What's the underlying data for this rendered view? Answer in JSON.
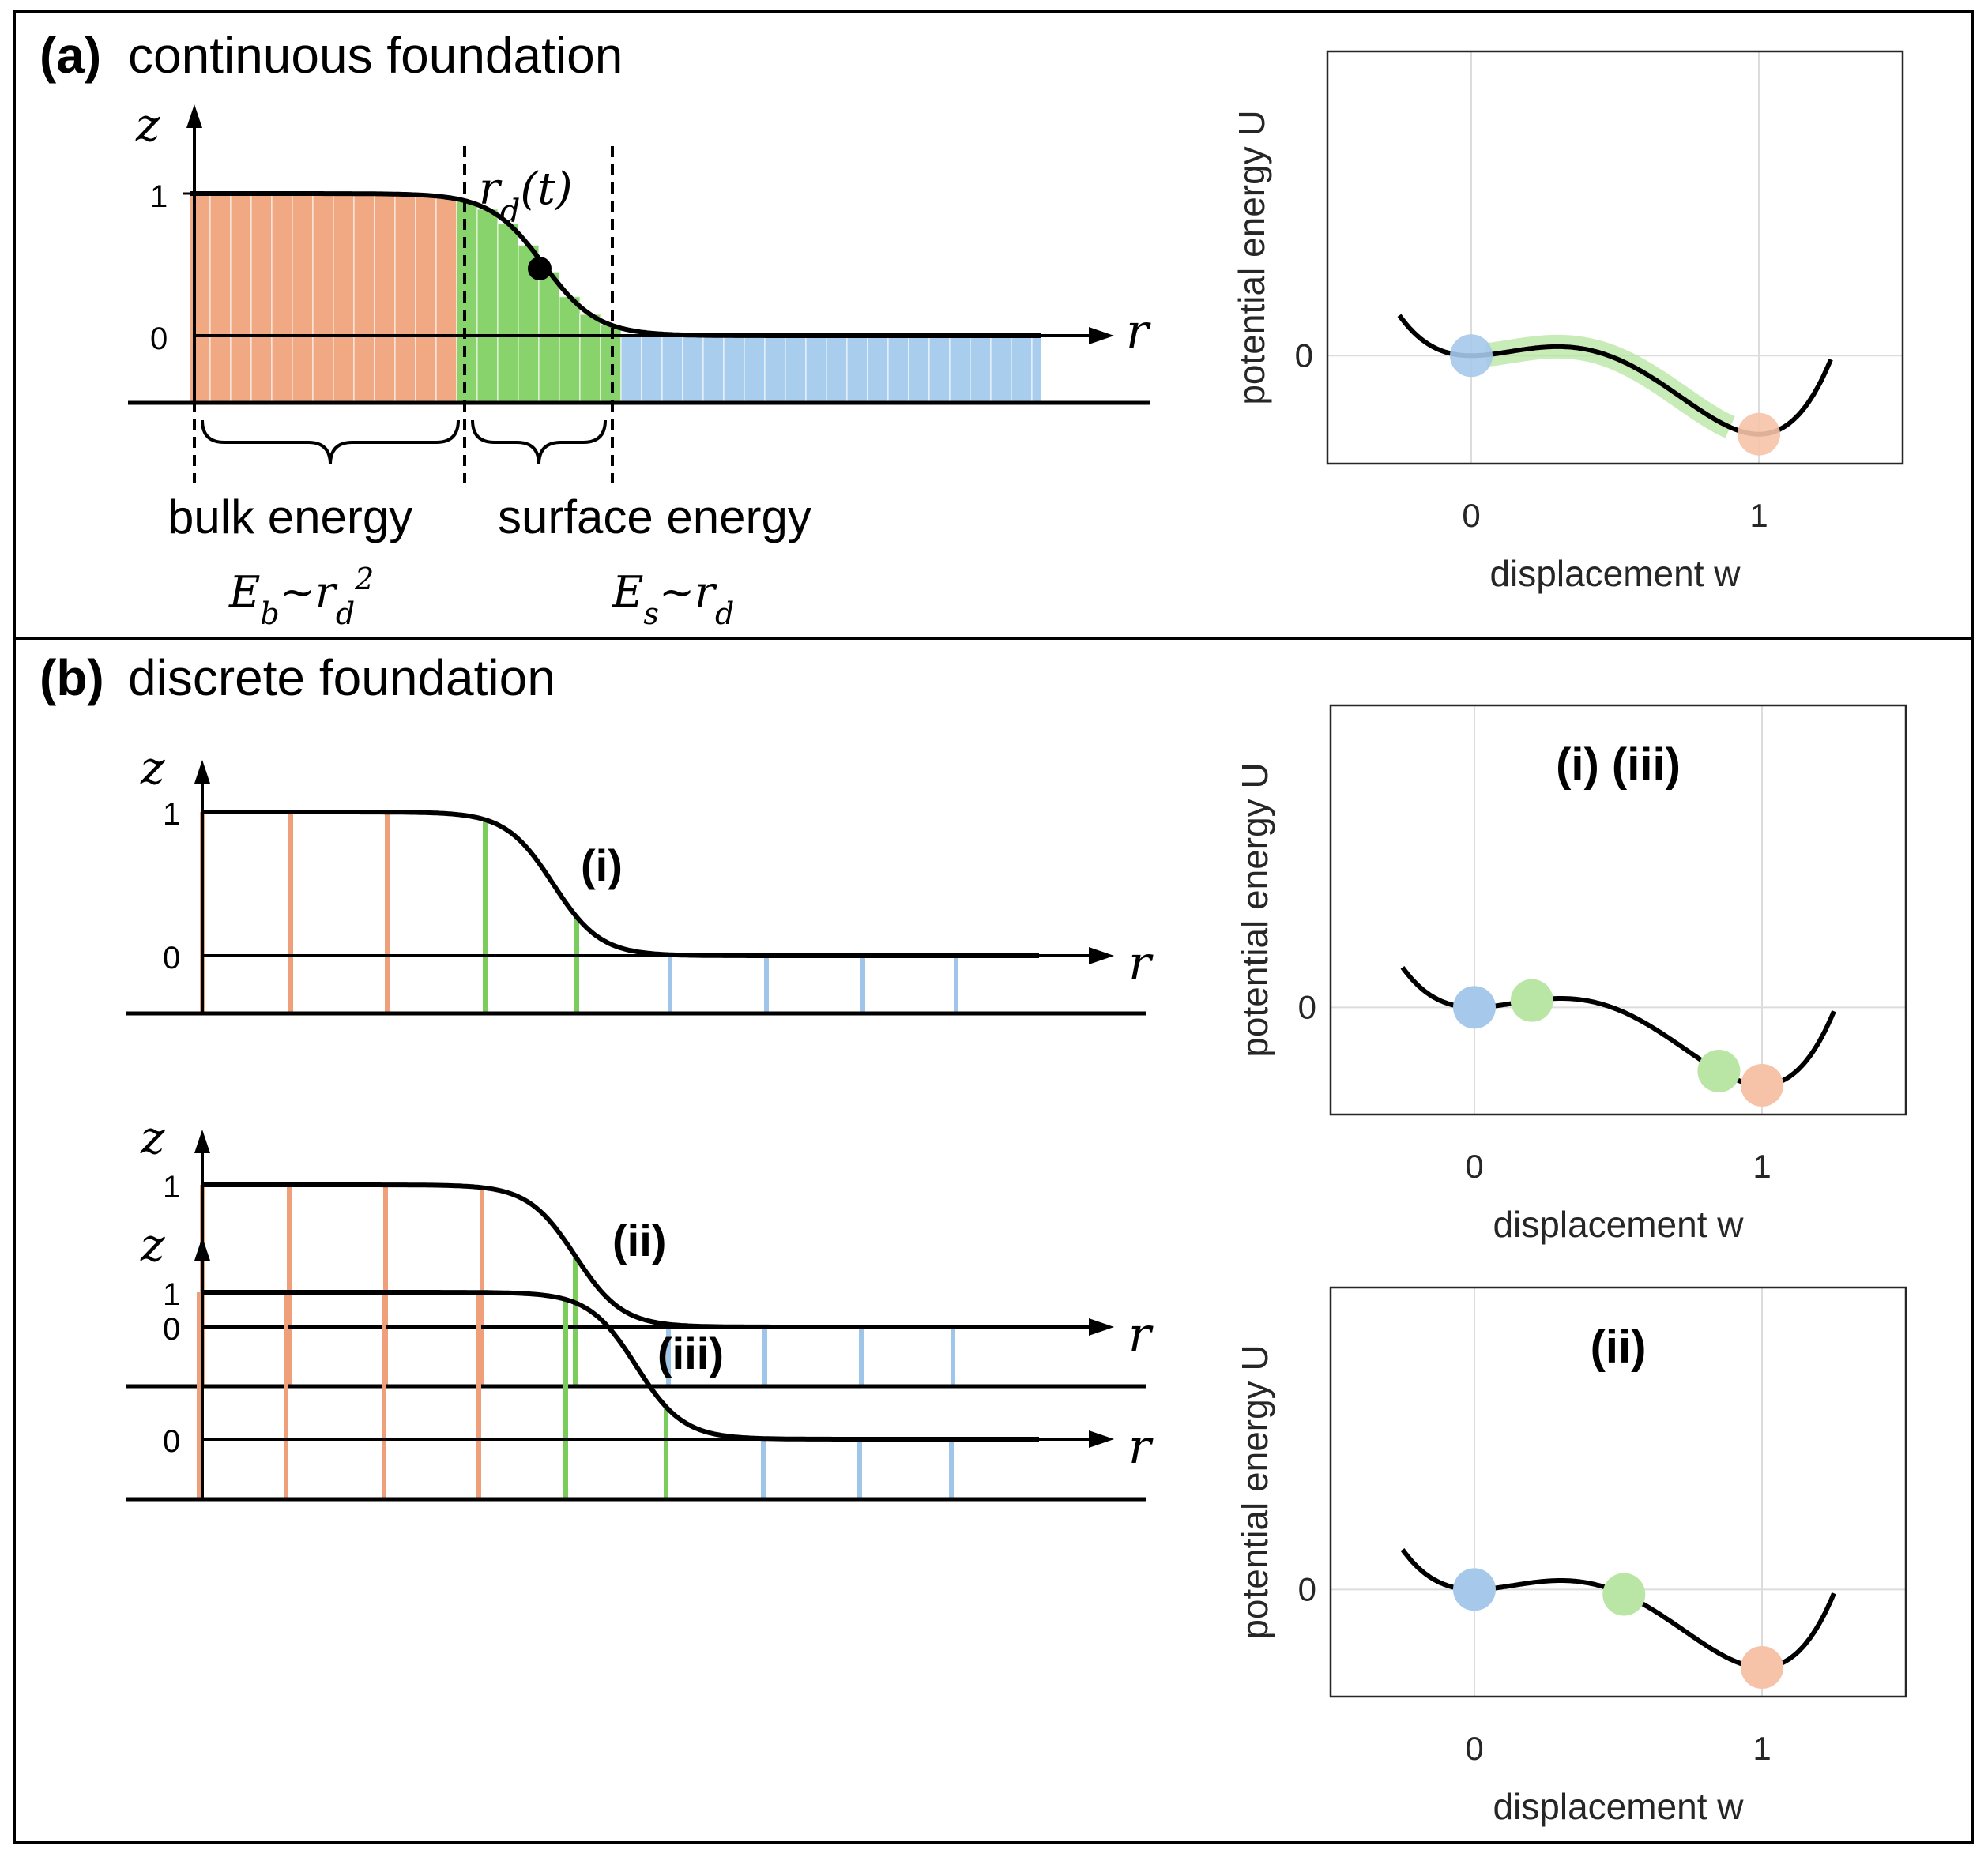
{
  "colors": {
    "bulk": "#f0a983",
    "bulk_line": "#ef9f7a",
    "surface": "#88d36b",
    "surface_line": "#7acd5a",
    "fluid": "#a9cdec",
    "fluid_line": "#9fc5e8",
    "dot_blue": "#a6c8ea",
    "dot_orange": "#f6c3a8",
    "dot_green": "#b9e6a5",
    "path_green": "#b6e6a0"
  },
  "panel_a": {
    "label": "(a)",
    "title": "continuous foundation",
    "axis_z": "z",
    "axis_r": "r",
    "tick_1": "1",
    "tick_0": "0",
    "front_label": "r_d(t)",
    "bulk_label": "bulk energy",
    "bulk_formula": "E_b~r_d^2",
    "surface_label": "surface energy",
    "surface_formula": "E_s~r_d",
    "plot": {
      "ylabel": "potential energy U",
      "xlabel": "displacement w",
      "xticks": [
        "0",
        "1"
      ],
      "yticks": [
        "0"
      ]
    }
  },
  "panel_b": {
    "label": "(b)",
    "title": "discrete foundation",
    "rows": [
      {
        "tag": "(i)",
        "axis_z": "z",
        "axis_r": "r",
        "tick_1": "1",
        "tick_0": "0"
      },
      {
        "tag": "(ii)",
        "axis_z": "z",
        "axis_r": "r",
        "tick_1": "1",
        "tick_0": "0"
      },
      {
        "tag": "(iii)",
        "axis_z": "z",
        "axis_r": "r",
        "tick_1": "1",
        "tick_0": "0"
      }
    ],
    "plot_top": {
      "title": "(i) (iii)",
      "ylabel": "potential energy U",
      "xlabel": "displacement w",
      "xticks": [
        "0",
        "1"
      ],
      "yticks": [
        "0"
      ]
    },
    "plot_bottom": {
      "title": "(ii)",
      "ylabel": "potential energy U",
      "xlabel": "displacement w",
      "xticks": [
        "0",
        "1"
      ],
      "yticks": [
        "0"
      ]
    }
  },
  "chart_data": [
    {
      "type": "line",
      "title": "",
      "xlabel": "displacement w",
      "ylabel": "potential energy U",
      "xlim": [
        -0.5,
        1.5
      ],
      "xticks": [
        0,
        1
      ],
      "yticks": [
        0
      ],
      "series": [
        {
          "name": "U(w)",
          "function": "double-well",
          "x_range": [
            -0.25,
            1.25
          ]
        }
      ],
      "highlight_path": {
        "x_range": [
          0.05,
          0.9
        ],
        "color": "#b6e6a0"
      },
      "markers": [
        {
          "x": 0,
          "state": "fluid",
          "color": "#a6c8ea"
        },
        {
          "x": 1,
          "state": "bulk",
          "color": "#f6c3a8"
        }
      ]
    },
    {
      "type": "line",
      "title": "(i) (iii)",
      "xlabel": "displacement w",
      "ylabel": "potential energy U",
      "xlim": [
        -0.5,
        1.5
      ],
      "xticks": [
        0,
        1
      ],
      "yticks": [
        0
      ],
      "series": [
        {
          "name": "U(w)",
          "function": "double-well",
          "x_range": [
            -0.25,
            1.25
          ]
        }
      ],
      "markers": [
        {
          "x": 0,
          "color": "#a6c8ea"
        },
        {
          "x": 0.2,
          "color": "#b9e6a5"
        },
        {
          "x": 0.85,
          "color": "#b9e6a5"
        },
        {
          "x": 1,
          "color": "#f6c3a8"
        }
      ]
    },
    {
      "type": "line",
      "title": "(ii)",
      "xlabel": "displacement w",
      "ylabel": "potential energy U",
      "xlim": [
        -0.5,
        1.5
      ],
      "xticks": [
        0,
        1
      ],
      "yticks": [
        0
      ],
      "series": [
        {
          "name": "U(w)",
          "function": "double-well",
          "x_range": [
            -0.25,
            1.25
          ]
        }
      ],
      "markers": [
        {
          "x": 0,
          "color": "#a6c8ea"
        },
        {
          "x": 0.52,
          "color": "#b9e6a5"
        },
        {
          "x": 1,
          "color": "#f6c3a8"
        }
      ]
    }
  ]
}
